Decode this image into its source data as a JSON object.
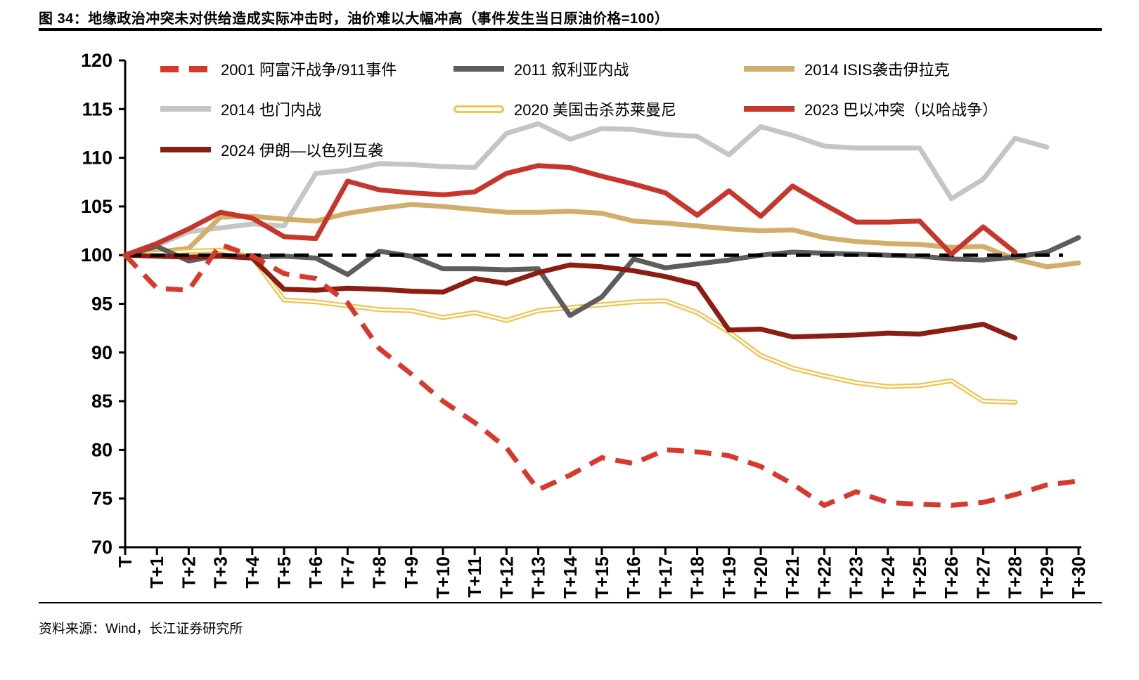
{
  "title": "图 34：地缘政治冲突未对供给造成实际冲击时，油价难以大幅冲高（事件发生当日原油价格=100）",
  "source": "资料来源：Wind，长江证券研究所",
  "chart_data": {
    "type": "line",
    "title": "事件发生当日原油价格=100",
    "xlabel": "",
    "ylabel": "",
    "ylim": [
      70,
      120
    ],
    "ytick_step": 5,
    "grid": false,
    "legend_position": "top-left-inside",
    "baseline": {
      "value": 100,
      "style": "dashed",
      "color": "#000000"
    },
    "x_labels": [
      "T",
      "T+1",
      "T+2",
      "T+3",
      "T+4",
      "T+5",
      "T+6",
      "T+7",
      "T+8",
      "T+9",
      "T+10",
      "T+11",
      "T+12",
      "T+13",
      "T+14",
      "T+15",
      "T+16",
      "T+17",
      "T+18",
      "T+19",
      "T+20",
      "T+21",
      "T+22",
      "T+23",
      "T+24",
      "T+25",
      "T+26",
      "T+27",
      "T+28",
      "T+29",
      "T+30"
    ],
    "series": [
      {
        "name": "2001 阿富汗战争/911事件",
        "color": "#D8392C",
        "style": "dashed",
        "values": [
          100,
          96.6,
          96.4,
          101.1,
          99.9,
          98.1,
          97.6,
          95.1,
          90.4,
          87.8,
          85.0,
          82.8,
          80.2,
          75.9,
          77.4,
          79.2,
          78.6,
          80.0,
          79.8,
          79.4,
          78.3,
          76.5,
          74.3,
          75.7,
          74.6,
          74.4,
          74.3,
          74.6,
          75.4,
          76.4,
          76.8
        ]
      },
      {
        "name": "2011 叙利亚内战",
        "color": "#5F5C5C",
        "style": "solid",
        "values": [
          100,
          100.9,
          99.4,
          100.0,
          99.8,
          99.9,
          99.7,
          98.0,
          100.4,
          99.9,
          98.6,
          98.6,
          98.5,
          98.6,
          93.8,
          95.7,
          99.6,
          98.7,
          99.1,
          99.5,
          100.0,
          100.3,
          100.2,
          100.1,
          100.0,
          99.9,
          99.6,
          99.5,
          99.8,
          100.3,
          101.8
        ]
      },
      {
        "name": "2014 ISIS袭击伊拉克",
        "color": "#D2AE6B",
        "style": "solid",
        "values": [
          100,
          100.3,
          100.7,
          103.9,
          104.0,
          103.7,
          103.5,
          104.3,
          104.8,
          105.2,
          105.0,
          104.7,
          104.4,
          104.4,
          104.5,
          104.3,
          103.5,
          103.3,
          103.0,
          102.7,
          102.5,
          102.6,
          101.8,
          101.4,
          101.2,
          101.1,
          100.8,
          100.9,
          99.6,
          98.8,
          99.2
        ]
      },
      {
        "name": "2014 也门内战",
        "color": "#C5C5C5",
        "style": "solid",
        "values": [
          100,
          101.0,
          102.4,
          102.8,
          103.2,
          103.0,
          108.4,
          108.7,
          109.4,
          109.3,
          109.1,
          109.0,
          112.5,
          113.5,
          111.9,
          113.0,
          112.9,
          112.4,
          112.2,
          110.3,
          113.2,
          112.3,
          111.2,
          111.0,
          111.0,
          111.0,
          105.8,
          107.8,
          112.0,
          111.1
        ]
      },
      {
        "name": "2020 美国击杀苏莱曼尼",
        "color": "#F4C24D",
        "style": "double",
        "values": [
          100,
          100.2,
          100.4,
          100.5,
          99.8,
          95.4,
          95.2,
          94.8,
          94.4,
          94.3,
          93.6,
          94.1,
          93.3,
          94.3,
          94.6,
          94.9,
          95.2,
          95.3,
          94.1,
          92.1,
          89.7,
          88.4,
          87.6,
          86.9,
          86.5,
          86.6,
          87.1,
          85.0,
          84.9
        ]
      },
      {
        "name": "2023 巴以冲突（以哈战争）",
        "color": "#C8352A",
        "style": "solid",
        "values": [
          100,
          101.2,
          102.7,
          104.4,
          103.8,
          101.9,
          101.7,
          107.6,
          106.7,
          106.4,
          106.2,
          106.5,
          108.4,
          109.2,
          109.0,
          108.1,
          107.3,
          106.4,
          104.1,
          106.6,
          104.0,
          107.1,
          105.2,
          103.4,
          103.4,
          103.5,
          100.1,
          102.9,
          100.3
        ]
      },
      {
        "name": "2024 伊朗—以色列互袭",
        "color": "#8B1D12",
        "style": "solid",
        "values": [
          100,
          99.9,
          99.8,
          99.9,
          99.7,
          96.5,
          96.4,
          96.6,
          96.5,
          96.3,
          96.2,
          97.6,
          97.1,
          98.2,
          99.0,
          98.8,
          98.4,
          97.8,
          97.0,
          92.3,
          92.4,
          91.6,
          91.7,
          91.8,
          92.0,
          91.9,
          92.4,
          92.9,
          91.5
        ]
      }
    ]
  }
}
